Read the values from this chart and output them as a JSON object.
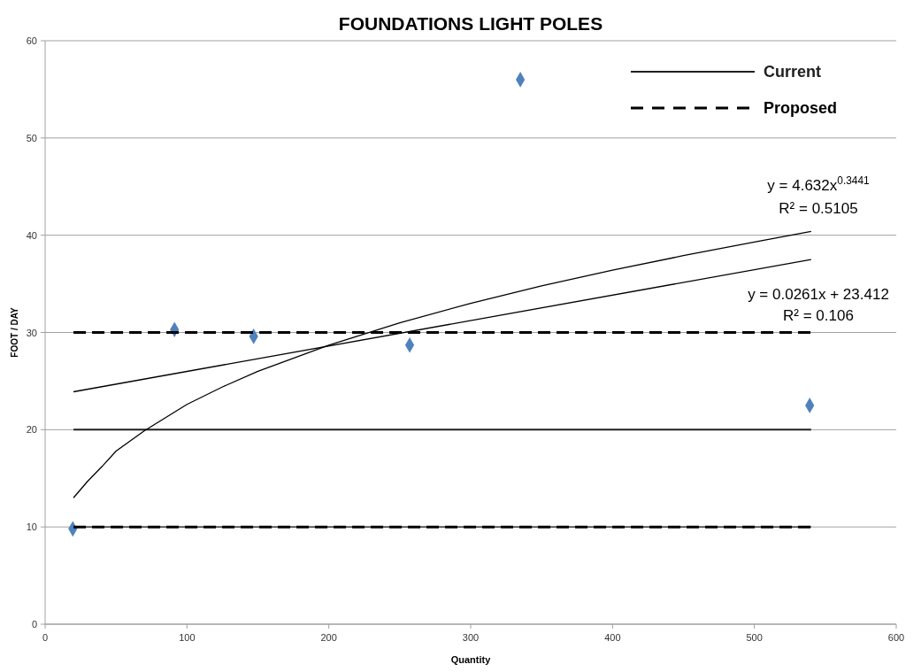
{
  "chart_data": {
    "type": "scatter",
    "title": "FOUNDATIONS LIGHT POLES",
    "xlabel": "Quantity",
    "ylabel": "FOOT / DAY",
    "xlim": [
      0,
      600
    ],
    "xticks": [
      0,
      100,
      200,
      300,
      400,
      500,
      600
    ],
    "ylim": [
      0,
      60
    ],
    "yticks": [
      0,
      10,
      20,
      30,
      40,
      50,
      60
    ],
    "grid": "y",
    "legend": "top right",
    "series": [
      {
        "marker": "diamond",
        "color": "#4f81bd",
        "x": [
          19.5,
          91.2,
          147,
          257,
          335,
          539
        ],
        "values": [
          9.8,
          30.3,
          29.6,
          28.7,
          56.0,
          22.5
        ]
      },
      {
        "type": "line",
        "name": "Current",
        "line_style": "solid",
        "color": "#202020",
        "x": [
          20,
          540
        ],
        "values": [
          20,
          20
        ]
      },
      {
        "type": "line",
        "line_style": "solid",
        "color": "#202020",
        "x": [
          20,
          540
        ],
        "values": [
          10,
          10
        ]
      },
      {
        "type": "line",
        "name": "Proposed",
        "line_style": "dashed",
        "color": "#000000",
        "x": [
          20,
          540
        ],
        "values": [
          30,
          30
        ]
      },
      {
        "type": "line",
        "line_style": "dashed",
        "color": "#000000",
        "x": [
          20,
          540
        ],
        "values": [
          10,
          10
        ]
      },
      {
        "type": "line",
        "line_style": "solid",
        "color": "#000000",
        "x": [
          20,
          30,
          40,
          50,
          70,
          100,
          125,
          150,
          200,
          250,
          300,
          350,
          400,
          450,
          500,
          540
        ],
        "values": [
          13.0,
          14.7,
          16.2,
          17.8,
          19.9,
          22.6,
          24.4,
          26.0,
          28.7,
          31.0,
          33.0,
          34.8,
          36.4,
          37.9,
          39.3,
          40.4
        ]
      },
      {
        "type": "line",
        "line_style": "solid",
        "color": "#000000",
        "x": [
          20,
          540
        ],
        "values": [
          23.9,
          37.5
        ]
      }
    ],
    "annotations": [
      "y = 4.632x$^{0.3441}$",
      "R² = 0.5105",
      "y = 0.0261x + 23.412",
      "R² = 0.106"
    ]
  }
}
